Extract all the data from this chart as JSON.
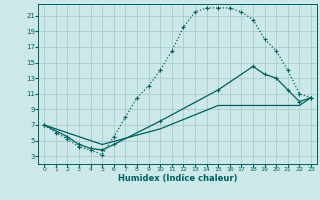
{
  "title": "",
  "xlabel": "Humidex (Indice chaleur)",
  "bg_color": "#cce8e8",
  "grid_color": "#aacccc",
  "line_color": "#005f5f",
  "xlim": [
    -0.5,
    23.5
  ],
  "ylim": [
    2,
    22.5
  ],
  "xticks": [
    0,
    1,
    2,
    3,
    4,
    5,
    6,
    7,
    8,
    9,
    10,
    11,
    12,
    13,
    14,
    15,
    16,
    17,
    18,
    19,
    20,
    21,
    22,
    23
  ],
  "yticks": [
    3,
    5,
    7,
    9,
    11,
    13,
    15,
    17,
    19,
    21
  ],
  "curve1_x": [
    0,
    1,
    2,
    3,
    4,
    5,
    6,
    7,
    8,
    9,
    10,
    11,
    12,
    13,
    14,
    15,
    16,
    17,
    18,
    19,
    20,
    21,
    22,
    23
  ],
  "curve1_y": [
    7,
    6,
    5.2,
    4.2,
    3.8,
    3.2,
    5.5,
    8,
    10.5,
    12,
    14,
    16.5,
    19.5,
    21.5,
    22,
    22,
    22,
    21.5,
    20.5,
    18,
    16.5,
    14,
    11,
    10.5
  ],
  "curve2_x": [
    0,
    2,
    3,
    4,
    5,
    6,
    10,
    15,
    18,
    19,
    20,
    21,
    22,
    23
  ],
  "curve2_y": [
    7,
    5.5,
    4.5,
    4.0,
    3.8,
    4.5,
    7.5,
    11.5,
    14.5,
    13.5,
    13,
    11.5,
    10,
    10.5
  ],
  "curve3_x": [
    0,
    5,
    10,
    15,
    18,
    20,
    22,
    23
  ],
  "curve3_y": [
    7,
    4.5,
    6.5,
    9.5,
    9.5,
    9.5,
    9.5,
    10.5
  ]
}
